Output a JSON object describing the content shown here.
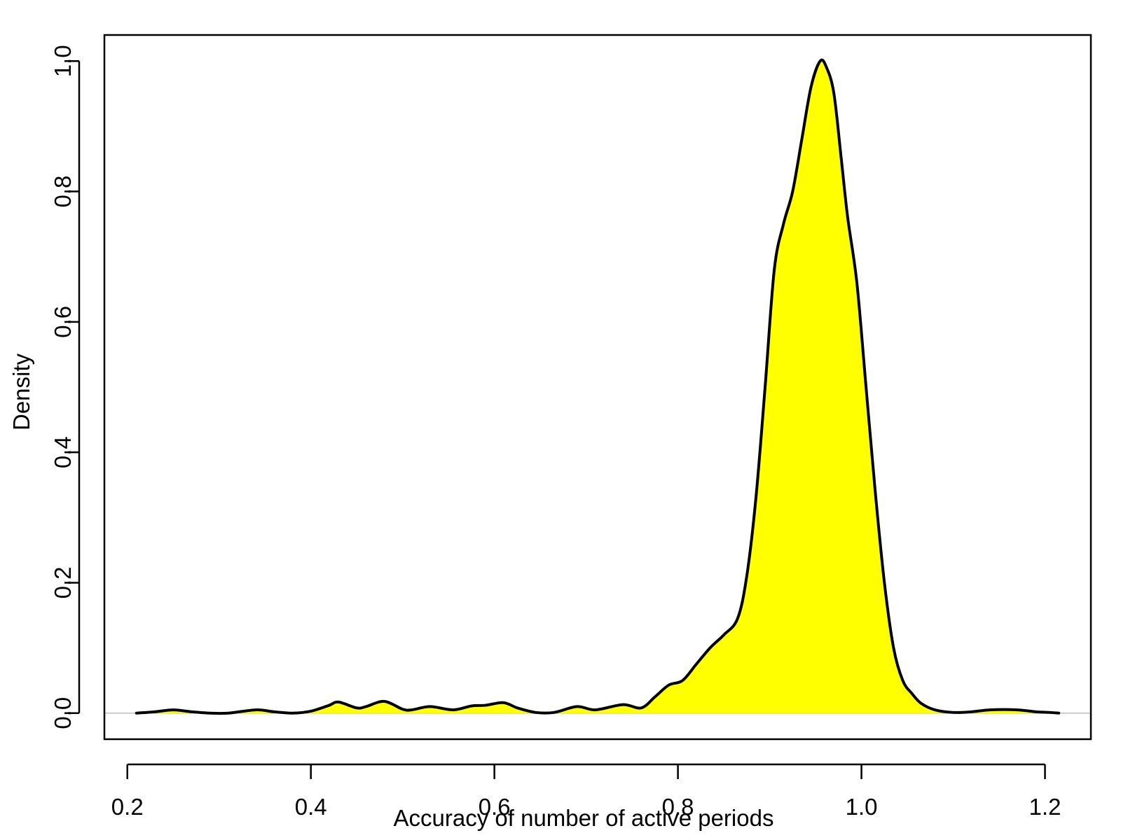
{
  "chart_data": {
    "type": "area",
    "title": "",
    "xlabel": "Accuracy of number of active periods",
    "ylabel": "Density",
    "xlim": [
      0.175,
      1.25
    ],
    "ylim": [
      -0.04,
      1.04
    ],
    "xticks": [
      0.2,
      0.4,
      0.6,
      0.8,
      1.0,
      1.2
    ],
    "xtick_labels": [
      "0.2",
      "0.4",
      "0.6",
      "0.8",
      "1.0",
      "1.2"
    ],
    "yticks": [
      0.0,
      0.2,
      0.4,
      0.6,
      0.8,
      1.0
    ],
    "ytick_labels": [
      "0.0",
      "0.2",
      "0.4",
      "0.6",
      "0.8",
      "1.0"
    ],
    "baseline": 0,
    "grid": false,
    "legend": "none",
    "colors": {
      "fill": "#ffff00",
      "line": "#000000",
      "baseline": "#bebebe"
    },
    "series": [
      {
        "x": [
          0.21,
          0.23,
          0.25,
          0.27,
          0.29,
          0.31,
          0.34,
          0.36,
          0.38,
          0.4,
          0.42,
          0.43,
          0.45,
          0.46,
          0.48,
          0.5,
          0.51,
          0.53,
          0.555,
          0.575,
          0.59,
          0.61,
          0.625,
          0.645,
          0.665,
          0.69,
          0.71,
          0.74,
          0.76,
          0.775,
          0.79,
          0.805,
          0.82,
          0.835,
          0.85,
          0.865,
          0.875,
          0.885,
          0.895,
          0.905,
          0.915,
          0.925,
          0.935,
          0.945,
          0.955,
          0.962,
          0.97,
          0.978,
          0.985,
          0.995,
          1.005,
          1.015,
          1.025,
          1.035,
          1.045,
          1.055,
          1.065,
          1.08,
          1.1,
          1.12,
          1.14,
          1.17,
          1.19,
          1.205,
          1.215
        ],
        "y": [
          0.0,
          0.002,
          0.005,
          0.002,
          0.0,
          0.0,
          0.005,
          0.002,
          0.0,
          0.003,
          0.012,
          0.017,
          0.008,
          0.01,
          0.018,
          0.006,
          0.005,
          0.01,
          0.005,
          0.011,
          0.012,
          0.016,
          0.008,
          0.001,
          0.001,
          0.01,
          0.005,
          0.013,
          0.008,
          0.025,
          0.043,
          0.05,
          0.075,
          0.1,
          0.12,
          0.145,
          0.21,
          0.33,
          0.5,
          0.68,
          0.75,
          0.8,
          0.88,
          0.96,
          1.0,
          0.99,
          0.95,
          0.85,
          0.76,
          0.66,
          0.5,
          0.34,
          0.2,
          0.1,
          0.05,
          0.03,
          0.015,
          0.005,
          0.001,
          0.002,
          0.005,
          0.005,
          0.002,
          0.001,
          0.0
        ]
      }
    ]
  }
}
